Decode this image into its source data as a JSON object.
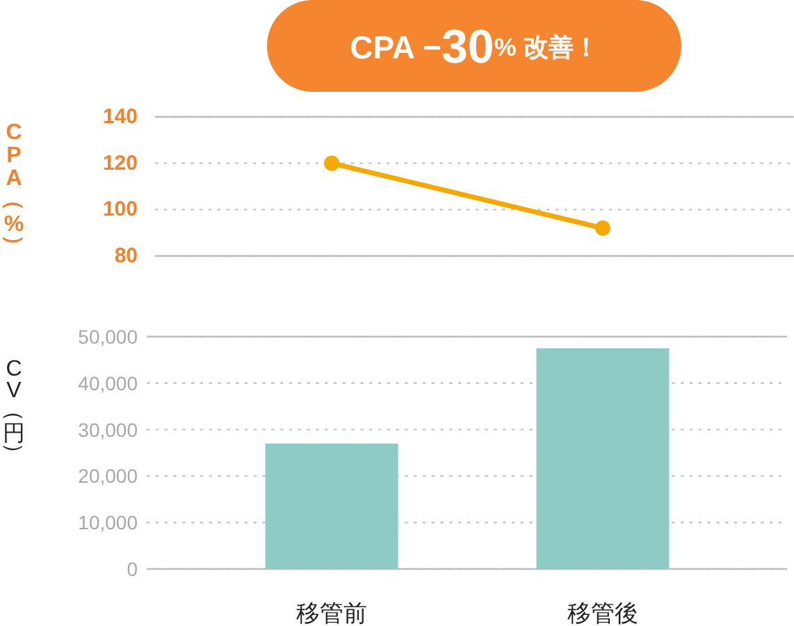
{
  "chart_data": [
    {
      "type": "line",
      "title": "CPA −30% 改善！",
      "ylabel": "CPA（%）",
      "categories": [
        "移管前",
        "移管後"
      ],
      "series": [
        {
          "color": "#f5a800",
          "values": [
            120,
            92
          ]
        }
      ],
      "ylim": [
        80,
        140
      ],
      "yticks": [
        80,
        100,
        120,
        140
      ],
      "grid": "y",
      "marker": "circle",
      "tick_labels": "y"
    },
    {
      "type": "bar",
      "ylabel": "CV（円）",
      "categories": [
        "移管前",
        "移管後"
      ],
      "values": [
        27000,
        47500
      ],
      "color": "#8ecbc6",
      "ylim": [
        0,
        50000
      ],
      "yticks": [
        0,
        {
          "value": 10000,
          "label": "10,000"
        },
        {
          "value": 20000,
          "label": "20,000"
        },
        {
          "value": 30000,
          "label": "30,000"
        },
        {
          "value": 40000,
          "label": "40,000"
        },
        {
          "value": 50000,
          "label": "50,000"
        }
      ],
      "grid": "y"
    }
  ]
}
